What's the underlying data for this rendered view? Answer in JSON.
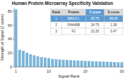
{
  "chart_data": {
    "type": "bar",
    "title": "Human Protein Microarray Specificity Validation",
    "x_label": "Signal Rank",
    "y_label": "Strength of Signal (Z score)",
    "categories": [
      "1",
      null,
      null,
      null,
      null,
      null,
      null,
      null,
      null,
      "10",
      null,
      null,
      null,
      null,
      null,
      null,
      null,
      null,
      null,
      "20",
      null,
      null,
      null,
      null,
      null,
      null,
      null,
      null,
      null,
      "30"
    ],
    "values": [
      82.79,
      24.75,
      23.35,
      20.5,
      18.2,
      16.8,
      15.5,
      14.2,
      13.5,
      12.8,
      11.6,
      11.2,
      10.8,
      10.4,
      10.1,
      9.8,
      9.5,
      9.3,
      9.0,
      8.8,
      8.6,
      8.3,
      8.1,
      7.9,
      7.7,
      7.5,
      7.3,
      7.1,
      6.9,
      6.9
    ],
    "color": "#7ab4d8",
    "ylim": [
      0,
      85
    ],
    "yticks": [
      0,
      20,
      40,
      60,
      80
    ],
    "grid": false,
    "table": {
      "columns": [
        "Rank",
        "Protein",
        "Z score",
        "S score"
      ],
      "rows": [
        [
          "1",
          "BRCA 1",
          "82.79",
          "58.04"
        ],
        [
          "2",
          "FAM49B",
          "24.75",
          "1.39"
        ],
        [
          "3",
          "F2",
          "23.35",
          "0.47"
        ]
      ],
      "highlight_color": "#5b9bd5"
    }
  }
}
